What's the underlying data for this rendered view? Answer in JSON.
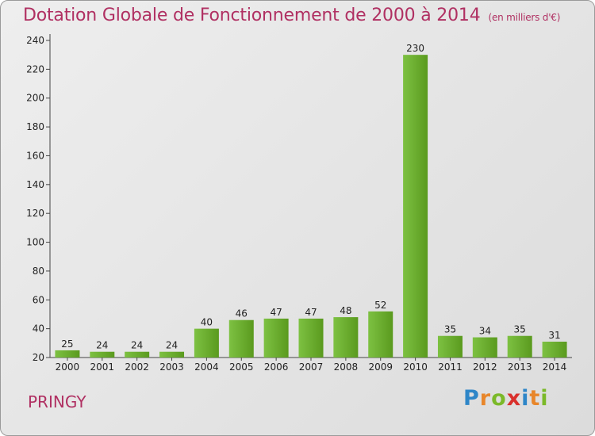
{
  "chart_data": {
    "type": "bar",
    "title": "Dotation Globale de Fonctionnement de 2000 à 2014",
    "unit_label": "(en milliers d'€)",
    "categories": [
      "2000",
      "2001",
      "2002",
      "2003",
      "2004",
      "2005",
      "2006",
      "2007",
      "2008",
      "2009",
      "2010",
      "2011",
      "2012",
      "2013",
      "2014"
    ],
    "values": [
      25,
      24,
      24,
      24,
      40,
      46,
      47,
      47,
      48,
      52,
      230,
      35,
      34,
      35,
      31
    ],
    "ylim": [
      20,
      240
    ],
    "yticks": [
      20,
      40,
      60,
      80,
      100,
      120,
      140,
      160,
      180,
      200,
      220,
      240
    ],
    "grid": false,
    "bar_color": "#7dc142",
    "bar_color_dark": "#5a9a1e"
  },
  "footer": {
    "city": "PRINGY",
    "logo_letters": [
      "P",
      "r",
      "o",
      "x",
      "i",
      "t",
      "i"
    ],
    "logo_colors": [
      "#2e86c8",
      "#e8862a",
      "#7bb929",
      "#d9302c",
      "#2e86c8",
      "#e8862a",
      "#7bb929"
    ]
  }
}
